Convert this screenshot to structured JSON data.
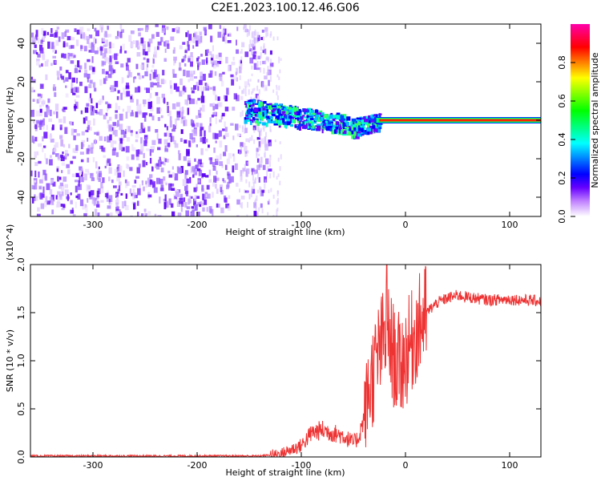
{
  "title": "C2E1.2023.100.12.46.G06",
  "chart_data": [
    {
      "type": "heatmap",
      "title": "C2E1.2023.100.12.46.G06",
      "xlabel": "Height of straight line (km)",
      "ylabel": "Frequency (Hz)",
      "xlim": [
        -360,
        130
      ],
      "ylim": [
        -50,
        50
      ],
      "x_ticks": [
        -300,
        -200,
        -100,
        0,
        100
      ],
      "y_ticks": [
        -40,
        -20,
        0,
        20,
        40
      ],
      "colorbar": {
        "label": "Normalized spectral amplitude",
        "range": [
          0,
          1
        ],
        "ticks": [
          "0.0",
          "0.2",
          "0.4",
          "0.6",
          "0.8"
        ],
        "colormap": [
          "#ffffff",
          "#9b30ff",
          "#0000ff",
          "#00ffff",
          "#00ff00",
          "#ffff00",
          "#ff0000",
          "#ff00ff"
        ]
      },
      "regions": [
        {
          "name": "noise",
          "x_range": [
            -360,
            -150
          ],
          "freq_range": [
            -50,
            50
          ],
          "amplitude": 0.1
        },
        {
          "name": "signal-onset",
          "x_range": [
            -155,
            -25
          ],
          "center_freq": [
            6,
            -4
          ],
          "amplitude": 0.35
        },
        {
          "name": "carrier",
          "x_range": [
            -25,
            130
          ],
          "center_freq": 0,
          "amplitude": 0.9
        }
      ],
      "grid": false
    },
    {
      "type": "line",
      "xlabel": "Height of straight line (km)",
      "ylabel": "SNR (10 * v/v)",
      "y_multiplier": "(x10^4)",
      "xlim": [
        -360,
        130
      ],
      "ylim": [
        0,
        2.0
      ],
      "x_ticks": [
        -300,
        -200,
        -100,
        0,
        100
      ],
      "y_ticks": [
        "0.0",
        "0.5",
        "1.0",
        "1.5",
        "2.0"
      ],
      "color": "#ee3333",
      "series": [
        {
          "x": [
            -360,
            -300,
            -200,
            -140,
            -120,
            -100,
            -90,
            -80,
            -70,
            -60,
            -50,
            -45,
            -40,
            -35,
            -30,
            -25,
            -20,
            -18,
            -15,
            -10,
            -5,
            0,
            10,
            20,
            30,
            40,
            50,
            60,
            80,
            100,
            130
          ],
          "y": [
            0.01,
            0.01,
            0.01,
            0.01,
            0.03,
            0.12,
            0.25,
            0.28,
            0.25,
            0.22,
            0.15,
            0.2,
            0.4,
            0.7,
            0.9,
            1.1,
            1.25,
            1.3,
            1.2,
            1.0,
            0.95,
            1.05,
            1.3,
            1.5,
            1.6,
            1.65,
            1.68,
            1.66,
            1.63,
            1.64,
            1.62
          ]
        }
      ],
      "grid": false
    }
  ]
}
